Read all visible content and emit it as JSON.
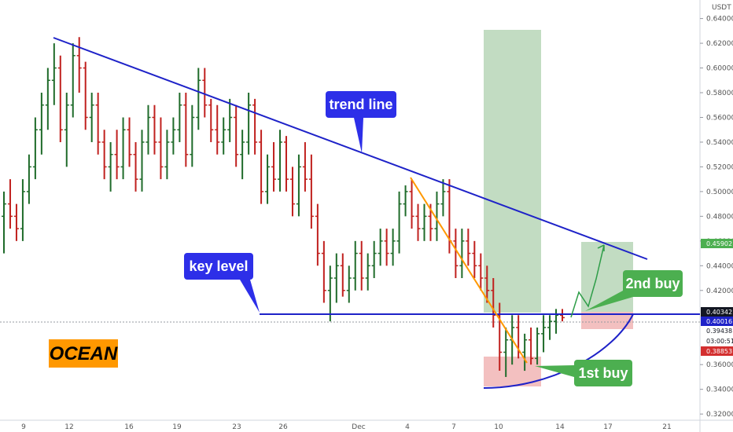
{
  "chart_data": {
    "type": "line",
    "instrument_label": "OCEAN",
    "currency": "USDT",
    "x_ticks": [
      "9",
      "12",
      "16",
      "19",
      "23",
      "26",
      "Dec",
      "4",
      "7",
      "10",
      "14",
      "17",
      "21"
    ],
    "y_ticks": [
      "0.64000",
      "0.62000",
      "0.60000",
      "0.58000",
      "0.56000",
      "0.54000",
      "0.52000",
      "0.50000",
      "0.48000",
      "0.46000",
      "0.44000",
      "0.42000",
      "0.36000",
      "0.34000",
      "0.32000"
    ],
    "ylim": [
      0.315,
      0.655
    ],
    "price_labels": [
      {
        "value": 0.45902,
        "text": "0.45902",
        "color": "#4caf50"
      },
      {
        "value": 0.40342,
        "text": "0.40342",
        "color": "#131722"
      },
      {
        "value": 0.40016,
        "text": "0.40016",
        "color": "#1e22c8"
      },
      {
        "value": 0.39438,
        "text": "0.39438",
        "color": "#ffffff",
        "text_color": "#131722"
      },
      {
        "value": 0.38853,
        "text": "0.38853",
        "color": "#d32f2f"
      }
    ],
    "countdown": "03:00:51",
    "annotations": {
      "trend_line": "trend line",
      "key_level": "key level",
      "first_buy": "1st buy",
      "second_buy": "2nd buy"
    },
    "series": [
      {
        "type": "ohlc",
        "bars": [
          [
            0.48,
            0.5,
            0.45,
            0.49
          ],
          [
            0.49,
            0.51,
            0.47,
            0.48
          ],
          [
            0.48,
            0.49,
            0.46,
            0.47
          ],
          [
            0.47,
            0.51,
            0.46,
            0.5
          ],
          [
            0.5,
            0.53,
            0.49,
            0.52
          ],
          [
            0.52,
            0.56,
            0.51,
            0.55
          ],
          [
            0.55,
            0.58,
            0.53,
            0.57
          ],
          [
            0.57,
            0.6,
            0.55,
            0.59
          ],
          [
            0.59,
            0.62,
            0.57,
            0.6
          ],
          [
            0.6,
            0.61,
            0.54,
            0.55
          ],
          [
            0.55,
            0.58,
            0.52,
            0.57
          ],
          [
            0.57,
            0.62,
            0.56,
            0.61
          ],
          [
            0.61,
            0.625,
            0.58,
            0.6
          ],
          [
            0.6,
            0.605,
            0.55,
            0.56
          ],
          [
            0.56,
            0.58,
            0.54,
            0.57
          ],
          [
            0.57,
            0.58,
            0.53,
            0.54
          ],
          [
            0.54,
            0.55,
            0.51,
            0.52
          ],
          [
            0.52,
            0.54,
            0.5,
            0.53
          ],
          [
            0.53,
            0.55,
            0.51,
            0.52
          ],
          [
            0.52,
            0.56,
            0.51,
            0.55
          ],
          [
            0.55,
            0.56,
            0.52,
            0.53
          ],
          [
            0.53,
            0.54,
            0.5,
            0.51
          ],
          [
            0.51,
            0.55,
            0.5,
            0.54
          ],
          [
            0.54,
            0.57,
            0.53,
            0.56
          ],
          [
            0.56,
            0.57,
            0.53,
            0.54
          ],
          [
            0.54,
            0.56,
            0.51,
            0.52
          ],
          [
            0.52,
            0.55,
            0.51,
            0.54
          ],
          [
            0.54,
            0.56,
            0.53,
            0.55
          ],
          [
            0.55,
            0.58,
            0.54,
            0.57
          ],
          [
            0.57,
            0.58,
            0.52,
            0.53
          ],
          [
            0.53,
            0.57,
            0.52,
            0.56
          ],
          [
            0.56,
            0.6,
            0.55,
            0.59
          ],
          [
            0.59,
            0.6,
            0.56,
            0.57
          ],
          [
            0.57,
            0.575,
            0.54,
            0.55
          ],
          [
            0.55,
            0.57,
            0.53,
            0.54
          ],
          [
            0.54,
            0.56,
            0.53,
            0.55
          ],
          [
            0.55,
            0.575,
            0.54,
            0.56
          ],
          [
            0.56,
            0.57,
            0.52,
            0.53
          ],
          [
            0.53,
            0.55,
            0.51,
            0.54
          ],
          [
            0.54,
            0.58,
            0.53,
            0.57
          ],
          [
            0.57,
            0.575,
            0.53,
            0.54
          ],
          [
            0.54,
            0.55,
            0.49,
            0.5
          ],
          [
            0.5,
            0.53,
            0.49,
            0.52
          ],
          [
            0.52,
            0.54,
            0.5,
            0.51
          ],
          [
            0.51,
            0.55,
            0.5,
            0.54
          ],
          [
            0.54,
            0.545,
            0.5,
            0.51
          ],
          [
            0.51,
            0.52,
            0.48,
            0.49
          ],
          [
            0.49,
            0.53,
            0.48,
            0.52
          ],
          [
            0.52,
            0.54,
            0.5,
            0.51
          ],
          [
            0.51,
            0.53,
            0.47,
            0.48
          ],
          [
            0.48,
            0.49,
            0.44,
            0.45
          ],
          [
            0.45,
            0.46,
            0.41,
            0.42
          ],
          [
            0.42,
            0.44,
            0.395,
            0.43
          ],
          [
            0.43,
            0.45,
            0.41,
            0.44
          ],
          [
            0.44,
            0.45,
            0.415,
            0.42
          ],
          [
            0.42,
            0.44,
            0.41,
            0.43
          ],
          [
            0.43,
            0.46,
            0.42,
            0.45
          ],
          [
            0.45,
            0.46,
            0.42,
            0.43
          ],
          [
            0.43,
            0.45,
            0.42,
            0.44
          ],
          [
            0.44,
            0.46,
            0.43,
            0.45
          ],
          [
            0.45,
            0.47,
            0.44,
            0.46
          ],
          [
            0.46,
            0.47,
            0.44,
            0.45
          ],
          [
            0.45,
            0.47,
            0.44,
            0.46
          ],
          [
            0.46,
            0.5,
            0.45,
            0.49
          ],
          [
            0.49,
            0.505,
            0.48,
            0.5
          ],
          [
            0.5,
            0.51,
            0.47,
            0.48
          ],
          [
            0.48,
            0.49,
            0.46,
            0.47
          ],
          [
            0.47,
            0.49,
            0.46,
            0.48
          ],
          [
            0.48,
            0.49,
            0.46,
            0.47
          ],
          [
            0.47,
            0.5,
            0.46,
            0.49
          ],
          [
            0.49,
            0.51,
            0.48,
            0.5
          ],
          [
            0.5,
            0.51,
            0.45,
            0.46
          ],
          [
            0.46,
            0.47,
            0.43,
            0.44
          ],
          [
            0.44,
            0.47,
            0.43,
            0.46
          ],
          [
            0.46,
            0.47,
            0.44,
            0.45
          ],
          [
            0.45,
            0.46,
            0.43,
            0.44
          ],
          [
            0.44,
            0.45,
            0.42,
            0.43
          ],
          [
            0.43,
            0.44,
            0.41,
            0.42
          ],
          [
            0.42,
            0.43,
            0.39,
            0.4
          ],
          [
            0.4,
            0.41,
            0.355,
            0.37
          ],
          [
            0.37,
            0.39,
            0.35,
            0.38
          ],
          [
            0.38,
            0.4,
            0.36,
            0.39
          ],
          [
            0.39,
            0.4,
            0.365,
            0.37
          ],
          [
            0.37,
            0.385,
            0.355,
            0.38
          ],
          [
            0.38,
            0.39,
            0.36,
            0.365
          ],
          [
            0.365,
            0.39,
            0.36,
            0.385
          ],
          [
            0.385,
            0.4,
            0.37,
            0.39
          ],
          [
            0.39,
            0.4,
            0.38,
            0.395
          ],
          [
            0.395,
            0.405,
            0.385,
            0.4
          ],
          [
            0.4,
            0.405,
            0.395,
            0.398
          ]
        ]
      }
    ]
  }
}
